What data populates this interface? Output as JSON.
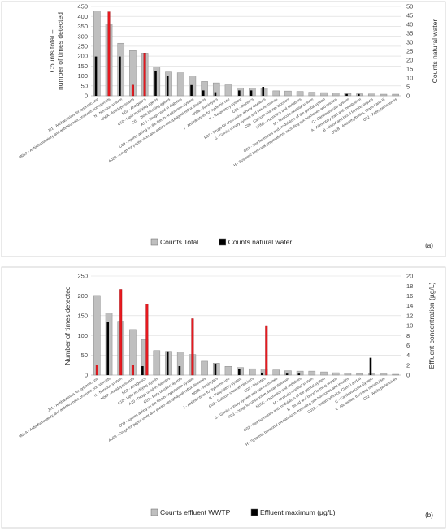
{
  "charts": [
    {
      "type": "bar",
      "panel_label": "(a)",
      "ylabel_left": "Counts total – number of times detected",
      "ylabel_right": "Counts natural water",
      "ylim_left": [
        0,
        450
      ],
      "yticks_left": [
        0,
        50,
        100,
        150,
        200,
        250,
        300,
        350,
        400,
        450
      ],
      "ylim_right": [
        0,
        50
      ],
      "yticks_right": [
        0,
        5,
        10,
        15,
        20,
        25,
        30,
        35,
        40,
        45,
        50
      ],
      "categories": [
        "J01 - Antibacterials for systemic use",
        "M01A - Antiinflammatory and antirheumatic products non-steroids",
        "N - Nervous system",
        "N06A - Antidepressants",
        "N02 - Analgesics",
        "C10 - Lipid modifying agents",
        "C07 - Beta blocking agents",
        "A10 - Drugs used in diabetes",
        "C09 - Agents acting on the Renin-Angiotensin system",
        "A02B - Drugs for peptic ulcer and gastro-oesophageal reflux diseases",
        "N05B - Anxiolytics",
        "J - Antiinfectives for systemic use",
        "R - Respiratory system",
        "C03 - Diuretics",
        "R03 - Drugs for obstructive airway diseases",
        "G - Genito urinary system and sex hormones",
        "C08 - Calcium channel blockers",
        "N05C - Hypnotics and sedatives",
        "M - Musculo-skeletal system",
        "G03 - Sex hormones and modulators of the genital system",
        "H - Systemic hormonal preparations, excluding sex hormones and insulins",
        "C - Cardiovascular system",
        "A - Alimentary tract and metabolism",
        "B - Blood and blood forming organs",
        "C01B - Antiarrhythmics, Class I and III",
        "C02 - Antihypertensives"
      ],
      "series": [
        {
          "name": "Counts Total",
          "axis": "left",
          "color": "#bfbfbf",
          "values": [
            427,
            363,
            265,
            228,
            215,
            145,
            120,
            116,
            100,
            72,
            65,
            55,
            40,
            38,
            38,
            25,
            24,
            22,
            18,
            16,
            14,
            12,
            10,
            9,
            8,
            8
          ]
        },
        {
          "name": "Counts natural water",
          "axis": "right",
          "color": "#000000",
          "values": [
            22,
            0,
            22,
            0,
            0,
            14,
            11,
            0,
            6,
            3,
            2,
            0,
            3,
            3,
            5,
            0,
            0,
            0,
            0,
            0,
            0,
            1,
            1,
            0,
            0,
            0
          ]
        },
        {
          "name": "",
          "axis": "right",
          "color": "#e8191f",
          "legend": false,
          "values": [
            0,
            47,
            0,
            6,
            24,
            0,
            0,
            0,
            0,
            0,
            0,
            0,
            0,
            0,
            0,
            0,
            0,
            0,
            0,
            0,
            0,
            0,
            0,
            0,
            0,
            0
          ]
        }
      ],
      "legend": [
        {
          "label": "Counts Total",
          "color": "#bfbfbf"
        },
        {
          "label": "Counts natural water",
          "color": "#000000"
        }
      ],
      "legend_position": "bottom"
    },
    {
      "type": "bar",
      "panel_label": "(b)",
      "ylabel_left": "Number of times detected",
      "ylabel_right": "Effluent concentration (µg/L)",
      "ylim_left": [
        0,
        250
      ],
      "yticks_left": [
        0,
        50,
        100,
        150,
        200,
        250
      ],
      "ylim_right": [
        0,
        20
      ],
      "yticks_right": [
        0,
        2,
        4,
        6,
        8,
        10,
        12,
        14,
        16,
        18,
        20
      ],
      "categories": [
        "J01 - Antibacterials for systemic use",
        "M01A - Antiinflammatory and antirheumatic products non-steroids",
        "N - Nervous system",
        "N06A - Antidepressants",
        "N02 - Analgesics",
        "C10 - Lipid modifying agents",
        "A10 - Drugs used in diabetes",
        "C07 - Beta blocking agents",
        "C09 - Agents acting on the Renin-Angiotensin system",
        "A02B - Drugs for peptic ulcer and gastro-oesophageal reflux diseases",
        "N05B - Anxiolytics",
        "J - Antiinfectives for systemic use",
        "R - Respiratory system",
        "C08 - Calcium channel blockers",
        "C03 - Diuretics",
        "G - Genito urinary system and sex hormones",
        "R03 - Drugs for obstructive airway diseases",
        "N05C - Hypnotics and sedatives",
        "M - Musculo-skeletal system",
        "G03 - Sex hormones and modulators of the genital system",
        "B - Blood and blood forming organs",
        "H - Systemic hormonal preparations, excluding sex hormones and insulins",
        "C01B - Antiarrhythmics, Class I and III",
        "C - Cardiovascular System",
        "A - Alimentary tract and metabolism",
        "C02 - Antihypertensives"
      ],
      "series": [
        {
          "name": "Counts effluent WWTP",
          "axis": "left",
          "color": "#bfbfbf",
          "values": [
            201,
            157,
            136,
            115,
            90,
            62,
            60,
            58,
            52,
            35,
            30,
            22,
            19,
            16,
            15,
            13,
            11,
            10,
            10,
            8,
            6,
            5,
            4,
            3,
            3,
            2
          ]
        },
        {
          "name": "Effluent maximum (µg/L)",
          "axis": "right",
          "color": "#000000",
          "values": [
            0,
            10.8,
            0,
            0,
            1.8,
            0,
            4.8,
            1.8,
            0,
            0,
            2.3,
            0,
            1.2,
            0,
            0.5,
            0,
            0.3,
            0.3,
            0,
            0,
            0,
            0,
            0,
            3.5,
            0,
            0
          ]
        },
        {
          "name": "",
          "axis": "right",
          "color": "#e8191f",
          "legend": false,
          "values": [
            2.0,
            0,
            17.3,
            2.0,
            14.3,
            0,
            0,
            0,
            11.4,
            0,
            0,
            0,
            0,
            0,
            10.0,
            0,
            0,
            0,
            0,
            0,
            0,
            0,
            0,
            0,
            0,
            0
          ]
        }
      ],
      "legend": [
        {
          "label": "Counts effluent WWTP",
          "color": "#bfbfbf"
        },
        {
          "label": "Effluent maximum (µg/L)",
          "color": "#000000"
        }
      ],
      "legend_position": "bottom"
    }
  ]
}
